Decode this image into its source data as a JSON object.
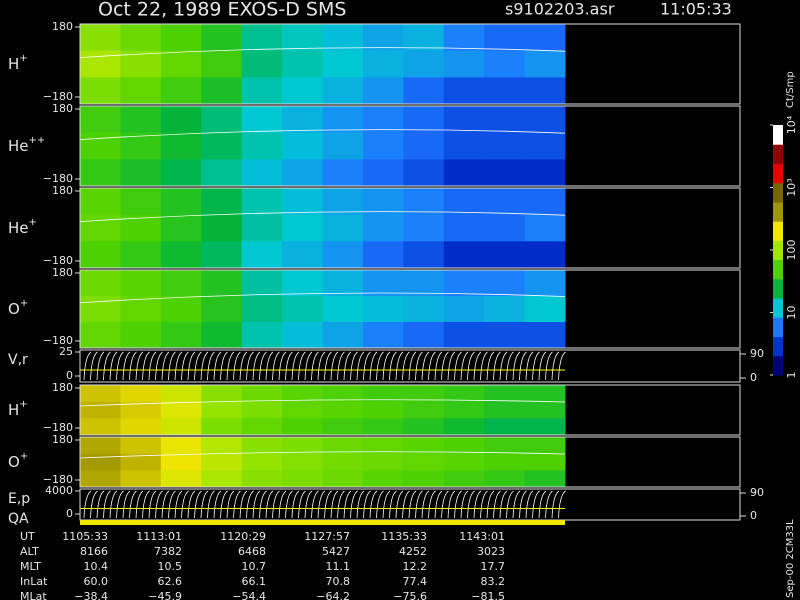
{
  "chart_data": {
    "type": "heatmap",
    "title": "Oct 22, 1989   EXOS-D SMS",
    "file": "s9102203.asr",
    "time": "11:05:33",
    "colorbar": {
      "label": "Ct/Smp",
      "clim": [
        1,
        10000
      ],
      "colors": [
        "#00007a",
        "#0032d2",
        "#1e78ff",
        "#00c8d2",
        "#00b43c",
        "#50d200",
        "#a0e600",
        "#f0e600",
        "#a09600",
        "#786400",
        "#e60000",
        "#960000",
        "#ffffff"
      ],
      "ticks": [
        1,
        10,
        100,
        {
          "value": 1000,
          "label": "10³"
        },
        {
          "value": 10000,
          "label": "10⁴"
        }
      ]
    },
    "panels": [
      {
        "ion": "H",
        "charge": "+",
        "ylim": [
          -180,
          180
        ],
        "yticks": [
          {
            "value": 180,
            "label": "180"
          },
          {
            "value": -180,
            "label": "−180"
          }
        ],
        "values": [
          [
            80,
            60,
            45,
            30,
            14,
            11,
            9,
            7,
            8,
            5,
            4,
            4
          ],
          [
            110,
            80,
            55,
            40,
            16,
            12,
            10,
            8,
            7,
            6,
            5,
            6
          ],
          [
            70,
            55,
            40,
            28,
            12,
            10,
            8,
            6,
            4,
            3,
            3,
            3
          ]
        ]
      },
      {
        "ion": "He",
        "charge": "++",
        "ylim": [
          -180,
          180
        ],
        "yticks": [
          {
            "value": 180,
            "label": "180"
          },
          {
            "value": -180,
            "label": "−180"
          }
        ],
        "values": [
          [
            40,
            30,
            22,
            16,
            10,
            8,
            6,
            5,
            4,
            3,
            3,
            3
          ],
          [
            45,
            35,
            25,
            18,
            12,
            9,
            7,
            5,
            4,
            3,
            3,
            3
          ],
          [
            35,
            28,
            20,
            14,
            9,
            7,
            5,
            4,
            3,
            2,
            2,
            2
          ]
        ]
      },
      {
        "ion": "He",
        "charge": "+",
        "ylim": [
          -180,
          180
        ],
        "yticks": [
          {
            "value": 180,
            "label": "180"
          },
          {
            "value": -180,
            "label": "−180"
          }
        ],
        "values": [
          [
            50,
            40,
            30,
            20,
            12,
            9,
            7,
            6,
            5,
            4,
            4,
            4
          ],
          [
            55,
            45,
            32,
            22,
            13,
            10,
            8,
            6,
            5,
            4,
            4,
            5
          ],
          [
            45,
            35,
            25,
            18,
            10,
            8,
            6,
            4,
            3,
            2,
            2,
            2
          ]
        ]
      },
      {
        "ion": "O",
        "charge": "+",
        "ylim": [
          -180,
          180
        ],
        "yticks": [
          {
            "value": 180,
            "label": "180"
          },
          {
            "value": -180,
            "label": "−180"
          }
        ],
        "values": [
          [
            60,
            50,
            40,
            30,
            13,
            10,
            8,
            6,
            6,
            5,
            5,
            6
          ],
          [
            70,
            55,
            45,
            32,
            15,
            12,
            10,
            9,
            8,
            7,
            8,
            10
          ],
          [
            55,
            45,
            35,
            25,
            12,
            9,
            7,
            5,
            4,
            3,
            3,
            3
          ]
        ]
      },
      {
        "label": "V,r",
        "line": true,
        "ylim": [
          0,
          25
        ],
        "yticks": [
          25,
          0
        ],
        "y2ticks": [
          90,
          0
        ]
      },
      {
        "ion": "H",
        "charge": "+",
        "ylim": [
          -180,
          180
        ],
        "yticks": [
          {
            "value": 180,
            "label": "180"
          },
          {
            "value": -180,
            "label": "−180"
          }
        ],
        "values": [
          [
            300,
            250,
            150,
            80,
            60,
            50,
            45,
            40,
            40,
            35,
            30,
            30
          ],
          [
            350,
            280,
            180,
            90,
            70,
            55,
            50,
            45,
            40,
            35,
            30,
            30
          ],
          [
            300,
            250,
            150,
            70,
            55,
            45,
            40,
            35,
            30,
            25,
            20,
            20
          ]
        ]
      },
      {
        "ion": "O",
        "charge": "+",
        "ylim": [
          -180,
          180
        ],
        "yticks": [
          {
            "value": 180,
            "label": "180"
          },
          {
            "value": -180,
            "label": "−180"
          }
        ],
        "values": [
          [
            400,
            300,
            200,
            120,
            80,
            70,
            60,
            55,
            50,
            45,
            40,
            40
          ],
          [
            450,
            350,
            220,
            130,
            90,
            75,
            65,
            60,
            55,
            50,
            45,
            45
          ],
          [
            400,
            300,
            180,
            110,
            80,
            70,
            60,
            50,
            45,
            40,
            35,
            30
          ]
        ]
      },
      {
        "label": "E,p",
        "label2": "QA",
        "line": true,
        "ylim": [
          0,
          4000
        ],
        "yticks": [
          4000,
          0
        ],
        "y2ticks": [
          90,
          0
        ]
      }
    ],
    "footer": "Sep-00 2CM33L",
    "table": {
      "rows": [
        [
          "UT",
          "1105:33",
          "1113:01",
          "1120:29",
          "1127:57",
          "1135:33",
          "1143:01"
        ],
        [
          "ALT",
          "8166",
          "7382",
          "6468",
          "5427",
          "4252",
          "3023"
        ],
        [
          "MLT",
          "10.4",
          "10.5",
          "10.7",
          "11.1",
          "12.2",
          "17.7"
        ],
        [
          "InLat",
          "60.0",
          "62.6",
          "66.1",
          "70.8",
          "77.4",
          "83.2"
        ],
        [
          "MLat",
          "−38.4",
          "−45.9",
          "−54.4",
          "−64.2",
          "−75.6",
          "−81.5"
        ]
      ]
    }
  }
}
